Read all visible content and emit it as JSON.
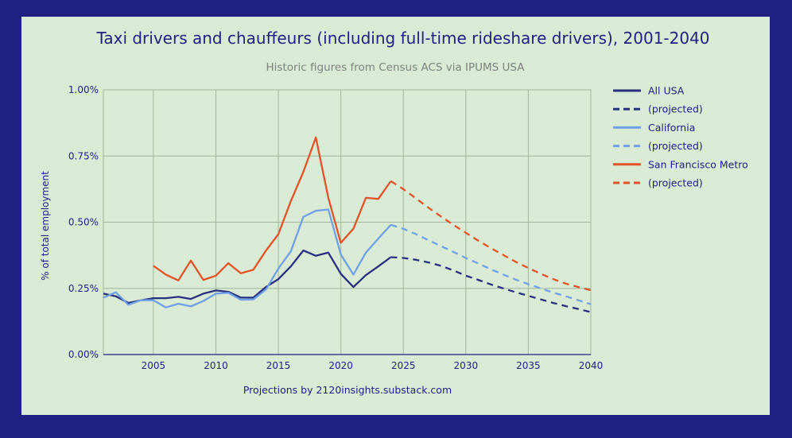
{
  "chart_data": {
    "type": "line",
    "title": "Taxi drivers and chauffeurs (including full-time rideshare drivers), 2001-2040",
    "subtitle": "Historic figures from Census ACS via IPUMS USA",
    "xlabel": "",
    "ylabel": "% of total employment",
    "footnote": "Projections by 2120insights.substack.com",
    "xlim": [
      2001,
      2040
    ],
    "ylim": [
      0,
      1.0
    ],
    "x_ticks": [
      2005,
      2010,
      2015,
      2020,
      2025,
      2030,
      2035,
      2040
    ],
    "y_ticks": [
      0,
      0.25,
      0.5,
      0.75,
      1.0
    ],
    "y_tick_labels": [
      "0.00%",
      "0.25%",
      "0.50%",
      "0.75%",
      "1.00%"
    ],
    "grid": true,
    "legend_position": "right",
    "series": [
      {
        "name": "All USA",
        "color": "#27307e",
        "style": "solid",
        "x": [
          2001,
          2002,
          2003,
          2004,
          2005,
          2006,
          2007,
          2008,
          2009,
          2010,
          2011,
          2012,
          2013,
          2014,
          2015,
          2016,
          2017,
          2018,
          2019,
          2020,
          2021,
          2022,
          2023,
          2024
        ],
        "values": [
          0.23,
          0.22,
          0.195,
          0.205,
          0.213,
          0.213,
          0.218,
          0.21,
          0.23,
          0.242,
          0.237,
          0.215,
          0.215,
          0.255,
          0.285,
          0.333,
          0.393,
          0.373,
          0.385,
          0.305,
          0.255,
          0.3,
          0.333,
          0.368
        ]
      },
      {
        "name": "(projected)",
        "color": "#27307e",
        "style": "dashed",
        "x": [
          2024,
          2025,
          2026,
          2027,
          2028,
          2029,
          2030,
          2031,
          2032,
          2033,
          2034,
          2035,
          2036,
          2037,
          2038,
          2039,
          2040
        ],
        "values": [
          0.368,
          0.365,
          0.358,
          0.348,
          0.335,
          0.318,
          0.298,
          0.282,
          0.265,
          0.25,
          0.235,
          0.222,
          0.208,
          0.195,
          0.183,
          0.172,
          0.16
        ]
      },
      {
        "name": "California",
        "color": "#6fa0e8",
        "style": "solid",
        "x": [
          2001,
          2002,
          2003,
          2004,
          2005,
          2006,
          2007,
          2008,
          2009,
          2010,
          2011,
          2012,
          2013,
          2014,
          2015,
          2016,
          2017,
          2018,
          2019,
          2020,
          2021,
          2022,
          2023,
          2024
        ],
        "values": [
          0.215,
          0.235,
          0.188,
          0.205,
          0.205,
          0.178,
          0.192,
          0.182,
          0.202,
          0.23,
          0.233,
          0.207,
          0.208,
          0.245,
          0.325,
          0.39,
          0.52,
          0.543,
          0.548,
          0.378,
          0.302,
          0.385,
          0.438,
          0.49
        ]
      },
      {
        "name": "(projected)",
        "color": "#6fa0e8",
        "style": "dashed",
        "x": [
          2024,
          2025,
          2026,
          2027,
          2028,
          2029,
          2030,
          2031,
          2032,
          2033,
          2034,
          2035,
          2036,
          2037,
          2038,
          2039,
          2040
        ],
        "values": [
          0.49,
          0.475,
          0.455,
          0.432,
          0.41,
          0.388,
          0.365,
          0.344,
          0.322,
          0.302,
          0.283,
          0.266,
          0.25,
          0.234,
          0.22,
          0.205,
          0.19
        ]
      },
      {
        "name": "San Francisco Metro",
        "color": "#e2532a",
        "style": "solid",
        "x": [
          2005,
          2006,
          2007,
          2008,
          2009,
          2010,
          2011,
          2012,
          2013,
          2014,
          2015,
          2016,
          2017,
          2018,
          2019,
          2020,
          2021,
          2022,
          2023,
          2024
        ],
        "values": [
          0.335,
          0.302,
          0.28,
          0.355,
          0.282,
          0.298,
          0.345,
          0.307,
          0.32,
          0.392,
          0.455,
          0.58,
          0.69,
          0.82,
          0.592,
          0.422,
          0.475,
          0.592,
          0.588,
          0.655
        ]
      },
      {
        "name": "(projected)",
        "color": "#e2532a",
        "style": "dashed",
        "x": [
          2024,
          2025,
          2026,
          2027,
          2028,
          2029,
          2030,
          2031,
          2032,
          2033,
          2034,
          2035,
          2036,
          2037,
          2038,
          2039,
          2040
        ],
        "values": [
          0.655,
          0.625,
          0.59,
          0.555,
          0.522,
          0.49,
          0.46,
          0.43,
          0.402,
          0.376,
          0.35,
          0.327,
          0.305,
          0.285,
          0.268,
          0.255,
          0.243
        ]
      }
    ]
  }
}
